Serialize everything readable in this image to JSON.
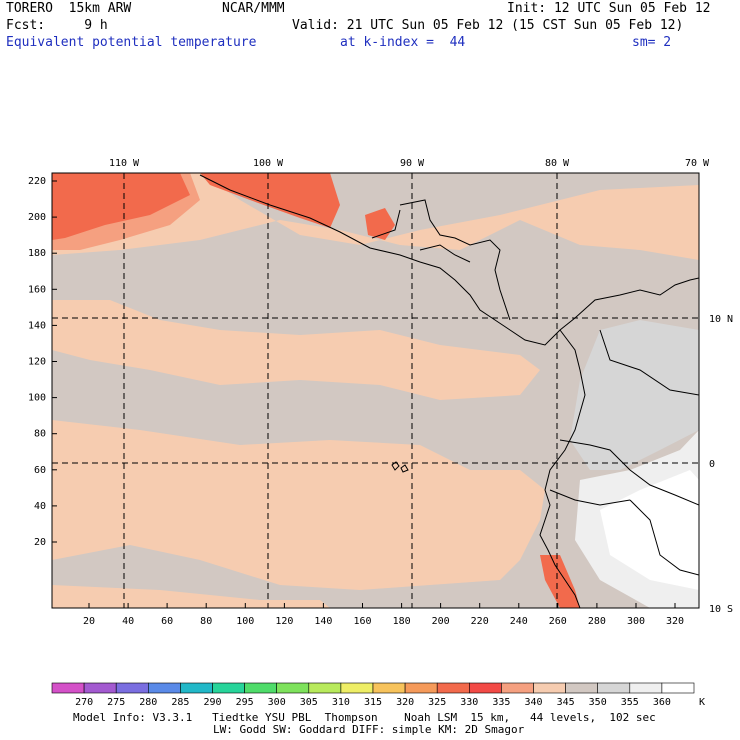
{
  "header": {
    "model": "TORERO  15km ARW",
    "org": "NCAR/MMM",
    "init": "Init: 12 UTC Sun 05 Feb 12",
    "fcst": "Fcst:     9 h",
    "valid": "Valid: 21 UTC Sun 05 Feb 12 (15 CST Sun 05 Feb 12)",
    "field": "Equivalent potential temperature",
    "level": "at k-index =  44",
    "smooth": "sm= 2"
  },
  "axes": {
    "top_lon_labels": [
      "110 W",
      "100 W",
      "90 W",
      "80 W",
      "70 W"
    ],
    "right_lat_labels": [
      "10 N",
      "0",
      "10 S"
    ],
    "left_y_ticks": [
      "220",
      "200",
      "180",
      "160",
      "140",
      "120",
      "100",
      "80",
      "60",
      "40",
      "20"
    ],
    "bottom_x_ticks": [
      "20",
      "40",
      "60",
      "80",
      "100",
      "120",
      "140",
      "160",
      "180",
      "200",
      "220",
      "240",
      "260",
      "280",
      "300",
      "320"
    ]
  },
  "colorbar": {
    "labels": [
      "270",
      "275",
      "280",
      "285",
      "290",
      "295",
      "300",
      "305",
      "310",
      "315",
      "320",
      "325",
      "330",
      "335",
      "340",
      "345",
      "350",
      "355",
      "360"
    ],
    "unit": "K",
    "colors": [
      "#d451c8",
      "#a35ad0",
      "#7a6ee0",
      "#5a8ae8",
      "#22b8c8",
      "#27d49a",
      "#4fdc6a",
      "#7ee25c",
      "#b8ea5c",
      "#eeee66",
      "#f7c35c",
      "#f59a5a",
      "#f26a4c",
      "#f24a46",
      "#f5a080",
      "#f6ccb0",
      "#d2c8c2",
      "#d6d6d6",
      "#efefef",
      "#ffffff"
    ]
  },
  "footer": {
    "line1": "Model Info: V3.3.1   Tiedtke YSU PBL  Thompson    Noah LSM  15 km,   44 levels,  102 sec",
    "line2": "LW: Godd SW: Goddard DIFF: simple KM: 2D Smagor"
  }
}
